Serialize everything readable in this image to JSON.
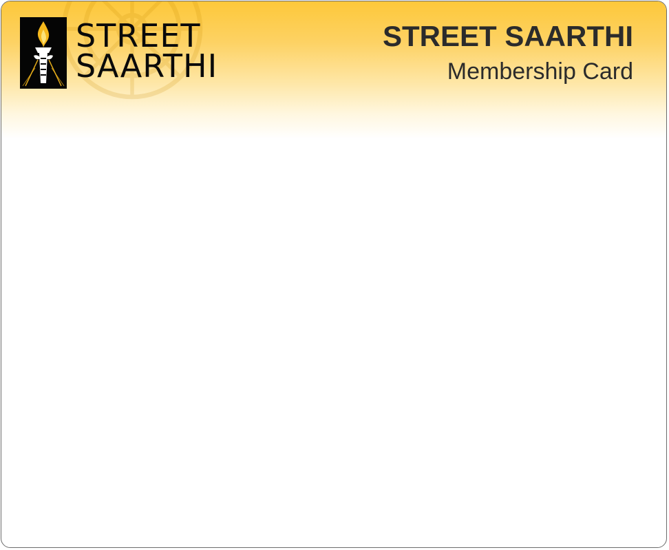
{
  "logo": {
    "line1": "STREET",
    "line2": "SAARTHI",
    "icon": "torch-hand-icon"
  },
  "card": {
    "title": "STREET SAARTHI",
    "subtitle": "Membership Card"
  },
  "colors": {
    "accent": "#fdc83a",
    "logo_background": "#050505",
    "torch_flame": "#f5b81c",
    "text": "#2b2b2b"
  }
}
